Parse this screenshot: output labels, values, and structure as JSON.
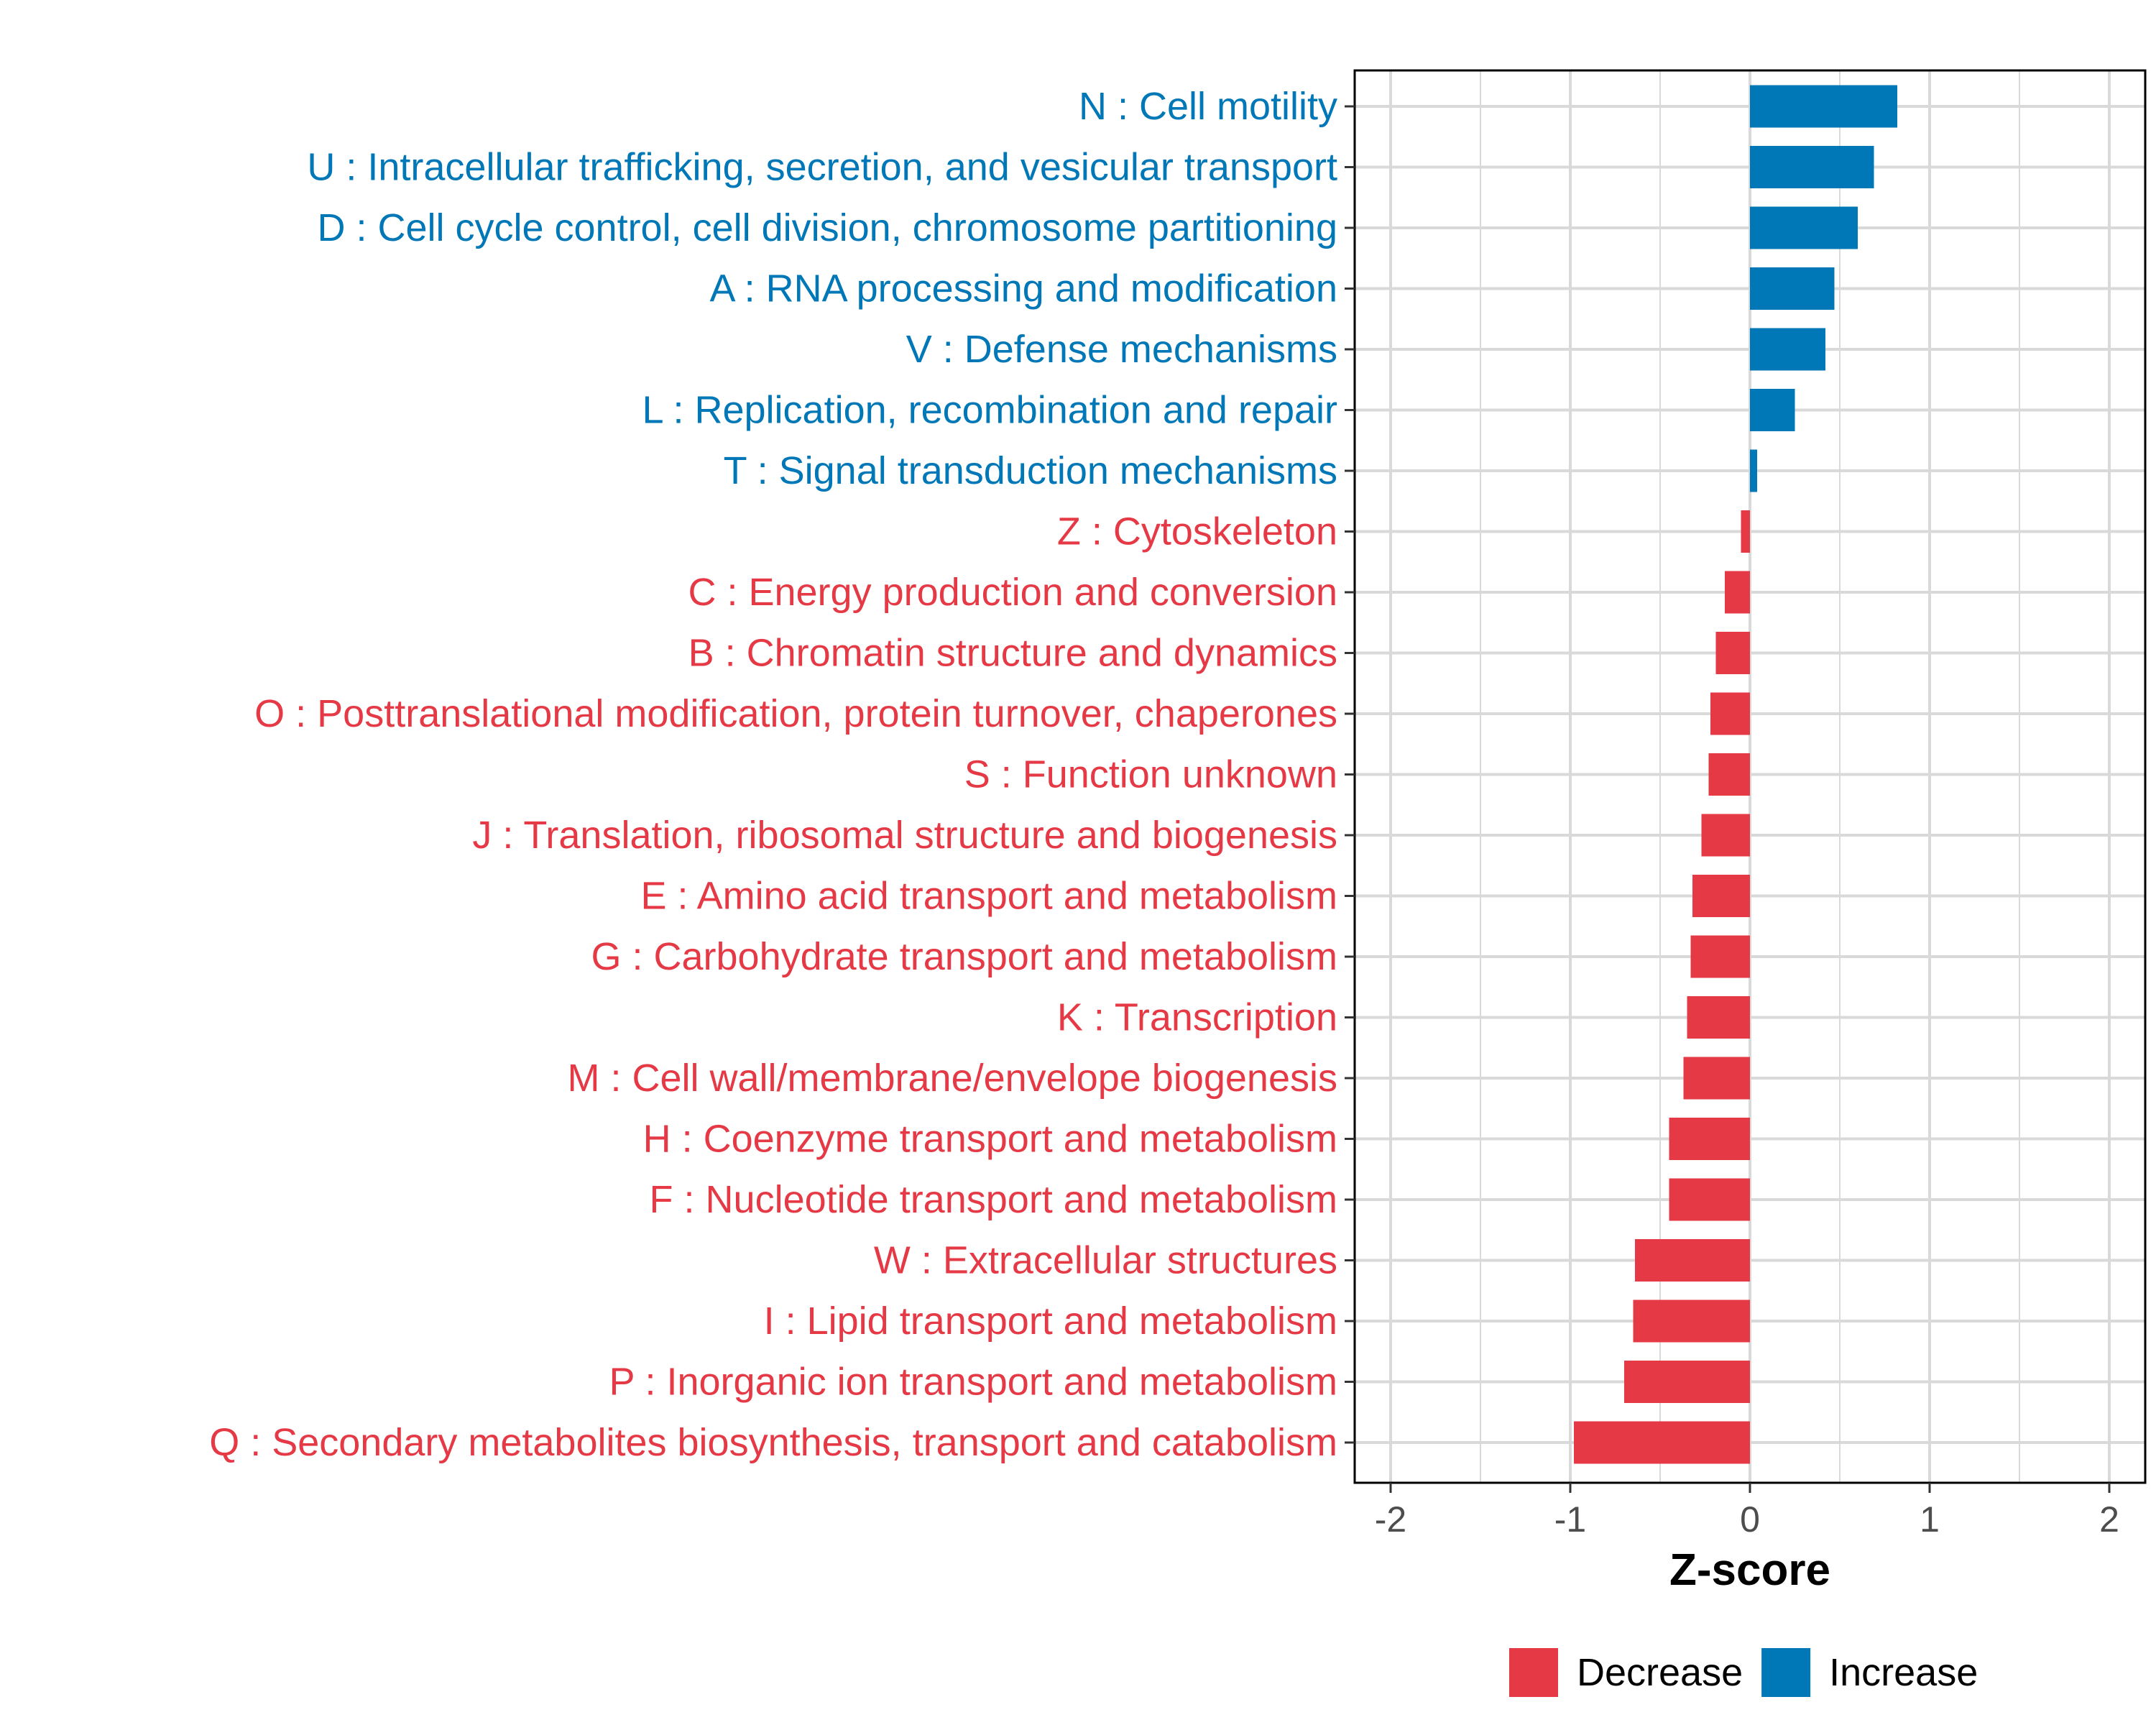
{
  "chart_data": {
    "type": "bar",
    "orientation": "horizontal",
    "title": "",
    "xlabel": "Z-score",
    "ylabel": "",
    "xlim": [
      -2.2,
      2.2
    ],
    "xticks": [
      {
        "value": -2,
        "label": "-2"
      },
      {
        "value": -1,
        "label": "-1"
      },
      {
        "value": 0,
        "label": "0"
      },
      {
        "value": 1,
        "label": "1"
      },
      {
        "value": 2,
        "label": "2"
      }
    ],
    "grid": true,
    "categories": [
      "N : Cell motility",
      "U : Intracellular trafficking, secretion, and vesicular transport",
      "D : Cell cycle control, cell division, chromosome partitioning",
      "A : RNA processing and modification",
      "V : Defense mechanisms",
      "L : Replication, recombination and repair",
      "T : Signal transduction mechanisms",
      "Z : Cytoskeleton",
      "C : Energy production and conversion",
      "B : Chromatin structure and dynamics",
      "O : Posttranslational modification, protein turnover, chaperones",
      "S : Function unknown",
      "J : Translation, ribosomal structure and biogenesis",
      "E : Amino acid transport and metabolism",
      "G : Carbohydrate transport and metabolism",
      "K : Transcription",
      "M : Cell wall/membrane/envelope biogenesis",
      "H : Coenzyme transport and metabolism",
      "F : Nucleotide transport and metabolism",
      "W : Extracellular structures",
      "I : Lipid transport and metabolism",
      "P : Inorganic ion transport and metabolism",
      "Q : Secondary metabolites biosynthesis, transport and catabolism"
    ],
    "values": [
      0.82,
      0.69,
      0.6,
      0.47,
      0.42,
      0.25,
      0.04,
      -0.05,
      -0.14,
      -0.19,
      -0.22,
      -0.23,
      -0.27,
      -0.32,
      -0.33,
      -0.35,
      -0.37,
      -0.45,
      -0.45,
      -0.64,
      -0.65,
      -0.7,
      -0.98
    ],
    "groups": [
      "Increase",
      "Increase",
      "Increase",
      "Increase",
      "Increase",
      "Increase",
      "Increase",
      "Decrease",
      "Decrease",
      "Decrease",
      "Decrease",
      "Decrease",
      "Decrease",
      "Decrease",
      "Decrease",
      "Decrease",
      "Decrease",
      "Decrease",
      "Decrease",
      "Decrease",
      "Decrease",
      "Decrease",
      "Decrease"
    ],
    "legend": {
      "placement": "bottom",
      "entries": [
        {
          "name": "Decrease",
          "color": "#E63946"
        },
        {
          "name": "Increase",
          "color": "#0077B6"
        }
      ]
    }
  },
  "colors": {
    "decrease": "#E63946",
    "increase": "#0077B6",
    "grid": "#d9d9d9",
    "panel_border": "#000000"
  }
}
